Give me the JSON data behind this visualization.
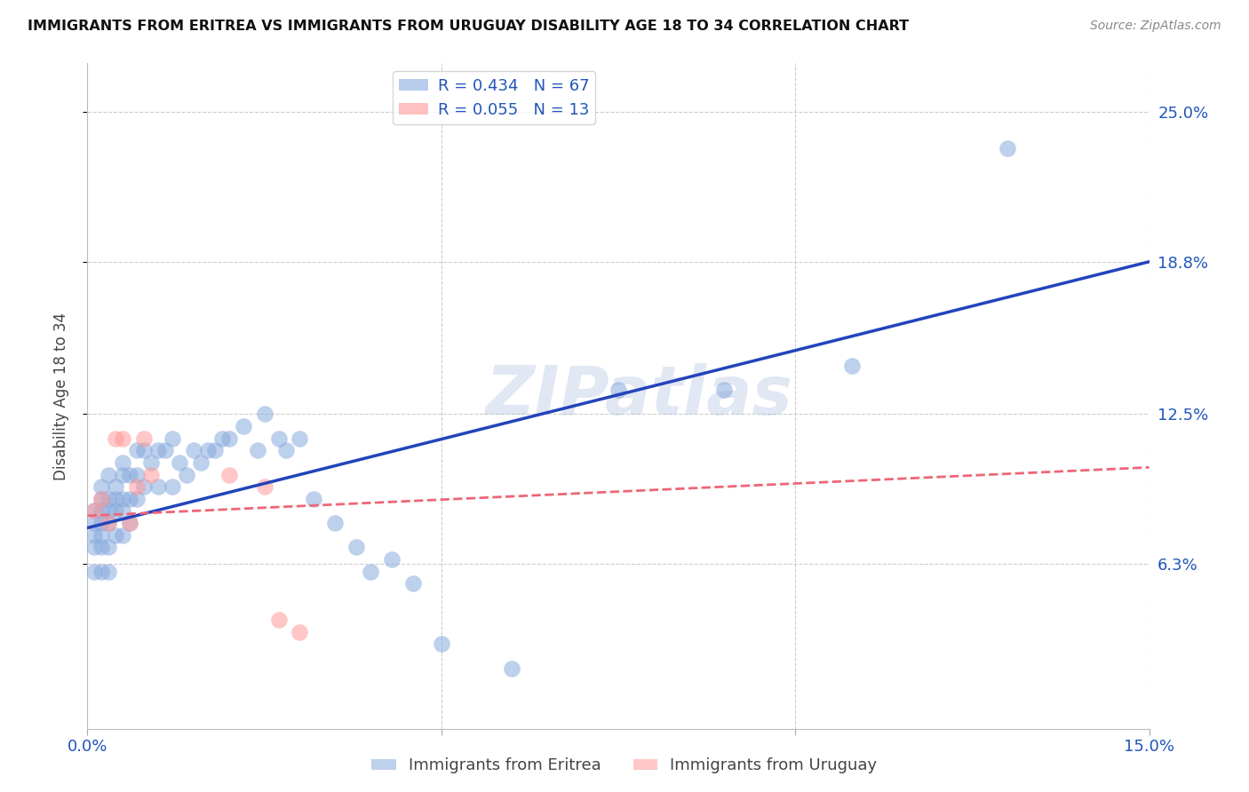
{
  "title": "IMMIGRANTS FROM ERITREA VS IMMIGRANTS FROM URUGUAY DISABILITY AGE 18 TO 34 CORRELATION CHART",
  "source": "Source: ZipAtlas.com",
  "ylabel": "Disability Age 18 to 34",
  "xlim": [
    0.0,
    0.15
  ],
  "ylim": [
    -0.005,
    0.27
  ],
  "watermark": "ZIPatlas",
  "series1_color": "#88AADD",
  "series2_color": "#FF9999",
  "series1_label": "Immigrants from Eritrea",
  "series2_label": "Immigrants from Uruguay",
  "series1_R": "R = 0.434",
  "series1_N": "N = 67",
  "series2_R": "R = 0.055",
  "series2_N": "N = 13",
  "series1_line_color": "#2244BB",
  "series2_line_color": "#EE6677",
  "grid_color": "#CCCCCC",
  "background_color": "#FFFFFF",
  "eritrea_x": [
    0.001,
    0.001,
    0.001,
    0.001,
    0.001,
    0.002,
    0.002,
    0.002,
    0.002,
    0.002,
    0.002,
    0.002,
    0.003,
    0.003,
    0.003,
    0.003,
    0.003,
    0.003,
    0.004,
    0.004,
    0.004,
    0.004,
    0.005,
    0.005,
    0.005,
    0.005,
    0.005,
    0.006,
    0.006,
    0.006,
    0.007,
    0.007,
    0.007,
    0.008,
    0.008,
    0.009,
    0.01,
    0.01,
    0.011,
    0.012,
    0.012,
    0.013,
    0.014,
    0.015,
    0.016,
    0.017,
    0.018,
    0.019,
    0.02,
    0.022,
    0.024,
    0.025,
    0.027,
    0.028,
    0.03,
    0.032,
    0.035,
    0.038,
    0.04,
    0.043,
    0.046,
    0.05,
    0.06,
    0.075,
    0.09,
    0.108,
    0.13
  ],
  "eritrea_y": [
    0.085,
    0.08,
    0.075,
    0.07,
    0.06,
    0.095,
    0.09,
    0.085,
    0.08,
    0.075,
    0.07,
    0.06,
    0.1,
    0.09,
    0.085,
    0.08,
    0.07,
    0.06,
    0.095,
    0.09,
    0.085,
    0.075,
    0.105,
    0.1,
    0.09,
    0.085,
    0.075,
    0.1,
    0.09,
    0.08,
    0.11,
    0.1,
    0.09,
    0.11,
    0.095,
    0.105,
    0.11,
    0.095,
    0.11,
    0.115,
    0.095,
    0.105,
    0.1,
    0.11,
    0.105,
    0.11,
    0.11,
    0.115,
    0.115,
    0.12,
    0.11,
    0.125,
    0.115,
    0.11,
    0.115,
    0.09,
    0.08,
    0.07,
    0.06,
    0.065,
    0.055,
    0.03,
    0.02,
    0.135,
    0.135,
    0.145,
    0.235
  ],
  "uruguay_x": [
    0.001,
    0.002,
    0.003,
    0.004,
    0.005,
    0.006,
    0.007,
    0.008,
    0.009,
    0.02,
    0.025,
    0.027,
    0.03
  ],
  "uruguay_y": [
    0.085,
    0.09,
    0.08,
    0.115,
    0.115,
    0.08,
    0.095,
    0.115,
    0.1,
    0.1,
    0.095,
    0.04,
    0.035
  ]
}
